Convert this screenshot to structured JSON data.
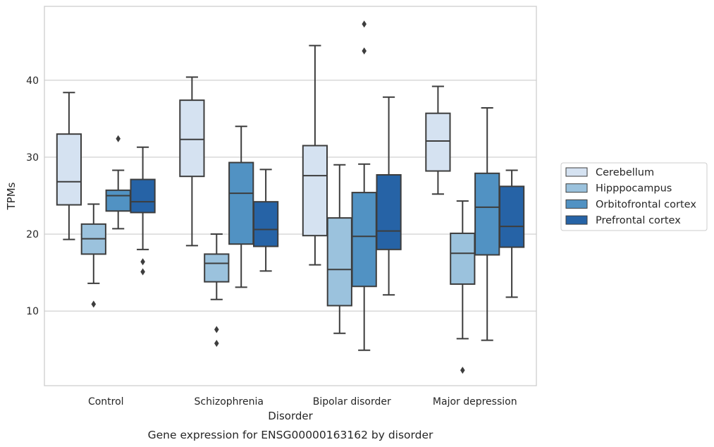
{
  "chart_data": {
    "type": "box",
    "caption": "Gene expression for ENSG00000163162 by disorder",
    "xlabel": "Disorder",
    "ylabel": "TPMs",
    "ylim": [
      0.3,
      49.6
    ],
    "yticks": [
      10,
      20,
      30,
      40
    ],
    "grid": "horizontal",
    "legend_position": "right",
    "categories": [
      "Control",
      "Schizophrenia",
      "Bipolar disorder",
      "Major depression"
    ],
    "series": [
      {
        "name": "Cerebellum",
        "color": "#d5e2f1",
        "boxes": [
          {
            "whislo": 19.3,
            "q1": 23.8,
            "med": 26.8,
            "q3": 33.0,
            "whishi": 38.4,
            "fliers": []
          },
          {
            "whislo": 18.5,
            "q1": 27.5,
            "med": 32.3,
            "q3": 37.4,
            "whishi": 40.4,
            "fliers": []
          },
          {
            "whislo": 16.0,
            "q1": 19.8,
            "med": 27.6,
            "q3": 31.5,
            "whishi": 44.5,
            "fliers": []
          },
          {
            "whislo": 25.2,
            "q1": 28.2,
            "med": 32.1,
            "q3": 35.7,
            "whishi": 39.2,
            "fliers": []
          }
        ]
      },
      {
        "name": "Hipppocampus",
        "color": "#9bc2dd",
        "boxes": [
          {
            "whislo": 13.6,
            "q1": 17.4,
            "med": 19.4,
            "q3": 21.3,
            "whishi": 23.9,
            "fliers": [
              10.9
            ]
          },
          {
            "whislo": 11.5,
            "q1": 13.8,
            "med": 16.2,
            "q3": 17.4,
            "whishi": 20.0,
            "fliers": [
              7.6,
              5.8
            ]
          },
          {
            "whislo": 7.1,
            "q1": 10.7,
            "med": 15.4,
            "q3": 22.1,
            "whishi": 29.0,
            "fliers": []
          },
          {
            "whislo": 6.4,
            "q1": 13.5,
            "med": 17.5,
            "q3": 20.1,
            "whishi": 24.3,
            "fliers": [
              2.3
            ]
          }
        ]
      },
      {
        "name": "Orbitofrontal cortex",
        "color": "#5192c3",
        "boxes": [
          {
            "whislo": 20.7,
            "q1": 23.0,
            "med": 25.0,
            "q3": 25.7,
            "whishi": 28.3,
            "fliers": [
              32.4
            ]
          },
          {
            "whislo": 13.1,
            "q1": 18.7,
            "med": 25.3,
            "q3": 29.3,
            "whishi": 34.0,
            "fliers": []
          },
          {
            "whislo": 4.9,
            "q1": 13.2,
            "med": 19.7,
            "q3": 25.4,
            "whishi": 29.1,
            "fliers": [
              47.3,
              43.8
            ]
          },
          {
            "whislo": 6.2,
            "q1": 17.3,
            "med": 23.5,
            "q3": 27.9,
            "whishi": 36.4,
            "fliers": []
          }
        ]
      },
      {
        "name": "Prefrontal cortex",
        "color": "#2663a6",
        "boxes": [
          {
            "whislo": 18.0,
            "q1": 22.8,
            "med": 24.2,
            "q3": 27.1,
            "whishi": 31.3,
            "fliers": [
              16.4,
              15.1
            ]
          },
          {
            "whislo": 15.2,
            "q1": 18.4,
            "med": 20.6,
            "q3": 24.2,
            "whishi": 28.4,
            "fliers": []
          },
          {
            "whislo": 12.1,
            "q1": 18.0,
            "med": 20.4,
            "q3": 27.7,
            "whishi": 37.8,
            "fliers": []
          },
          {
            "whislo": 11.8,
            "q1": 18.3,
            "med": 21.0,
            "q3": 26.2,
            "whishi": 28.3,
            "fliers": []
          }
        ]
      }
    ]
  }
}
